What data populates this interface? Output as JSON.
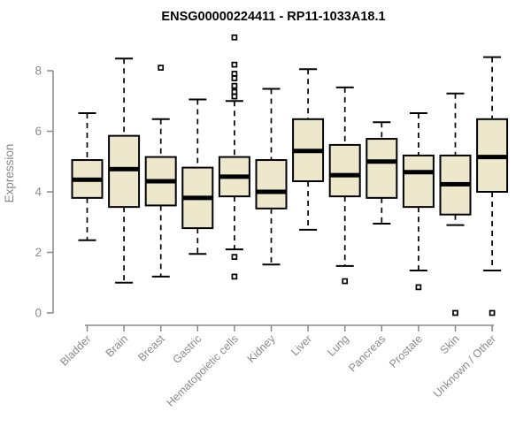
{
  "colors": {
    "background": "#ffffff",
    "title_text": "#000000",
    "axis": "#888888",
    "axis_text": "#8a8a8a",
    "box_fill": "#ede8cc",
    "box_stroke": "#000000",
    "median": "#000000",
    "outlier_fill": "#ffffff",
    "outlier_stroke": "#000000"
  },
  "chart_data": {
    "type": "box",
    "title": "ENSG00000224411 - RP11-1033A18.1",
    "xlabel": "",
    "ylabel": "Expression",
    "yticks": [
      0,
      2,
      4,
      6,
      8
    ],
    "ylim": [
      -0.4,
      9.3
    ],
    "grid": false,
    "legend": "none",
    "categories": [
      "Bladder",
      "Brain",
      "Breast",
      "Gastric",
      "Hematopoietic cells",
      "Kidney",
      "Liver",
      "Lung",
      "Pancreas",
      "Prostate",
      "Skin",
      "Unknown / Other"
    ],
    "boxes": [
      {
        "category": "Bladder",
        "whisker_low": 2.4,
        "q1": 3.8,
        "median": 4.4,
        "q3": 5.05,
        "whisker_high": 6.6,
        "outliers": []
      },
      {
        "category": "Brain",
        "whisker_low": 1.0,
        "q1": 3.5,
        "median": 4.75,
        "q3": 5.85,
        "whisker_high": 8.4,
        "outliers": []
      },
      {
        "category": "Breast",
        "whisker_low": 1.2,
        "q1": 3.55,
        "median": 4.35,
        "q3": 5.15,
        "whisker_high": 6.4,
        "outliers": [
          8.1
        ]
      },
      {
        "category": "Gastric",
        "whisker_low": 1.95,
        "q1": 2.8,
        "median": 3.8,
        "q3": 4.8,
        "whisker_high": 7.05,
        "outliers": []
      },
      {
        "category": "Hematopoietic cells",
        "whisker_low": 2.1,
        "q1": 3.85,
        "median": 4.5,
        "q3": 5.15,
        "whisker_high": 7.0,
        "outliers": [
          9.1,
          8.2,
          7.9,
          7.75,
          7.5,
          7.3,
          7.15,
          1.85,
          1.2
        ]
      },
      {
        "category": "Kidney",
        "whisker_low": 1.6,
        "q1": 3.45,
        "median": 4.0,
        "q3": 5.05,
        "whisker_high": 7.4,
        "outliers": []
      },
      {
        "category": "Liver",
        "whisker_low": 2.75,
        "q1": 4.35,
        "median": 5.35,
        "q3": 6.4,
        "whisker_high": 8.05,
        "outliers": []
      },
      {
        "category": "Lung",
        "whisker_low": 1.55,
        "q1": 3.85,
        "median": 4.55,
        "q3": 5.55,
        "whisker_high": 7.45,
        "outliers": [
          1.05
        ]
      },
      {
        "category": "Pancreas",
        "whisker_low": 2.95,
        "q1": 3.8,
        "median": 5.0,
        "q3": 5.75,
        "whisker_high": 6.3,
        "outliers": []
      },
      {
        "category": "Prostate",
        "whisker_low": 1.4,
        "q1": 3.5,
        "median": 4.65,
        "q3": 5.2,
        "whisker_high": 6.6,
        "outliers": [
          0.85
        ]
      },
      {
        "category": "Skin",
        "whisker_low": 2.9,
        "q1": 3.25,
        "median": 4.25,
        "q3": 5.2,
        "whisker_high": 7.25,
        "outliers": [
          0
        ]
      },
      {
        "category": "Unknown / Other",
        "whisker_low": 1.4,
        "q1": 4.0,
        "median": 5.15,
        "q3": 6.4,
        "whisker_high": 8.45,
        "outliers": [
          0
        ]
      }
    ]
  }
}
